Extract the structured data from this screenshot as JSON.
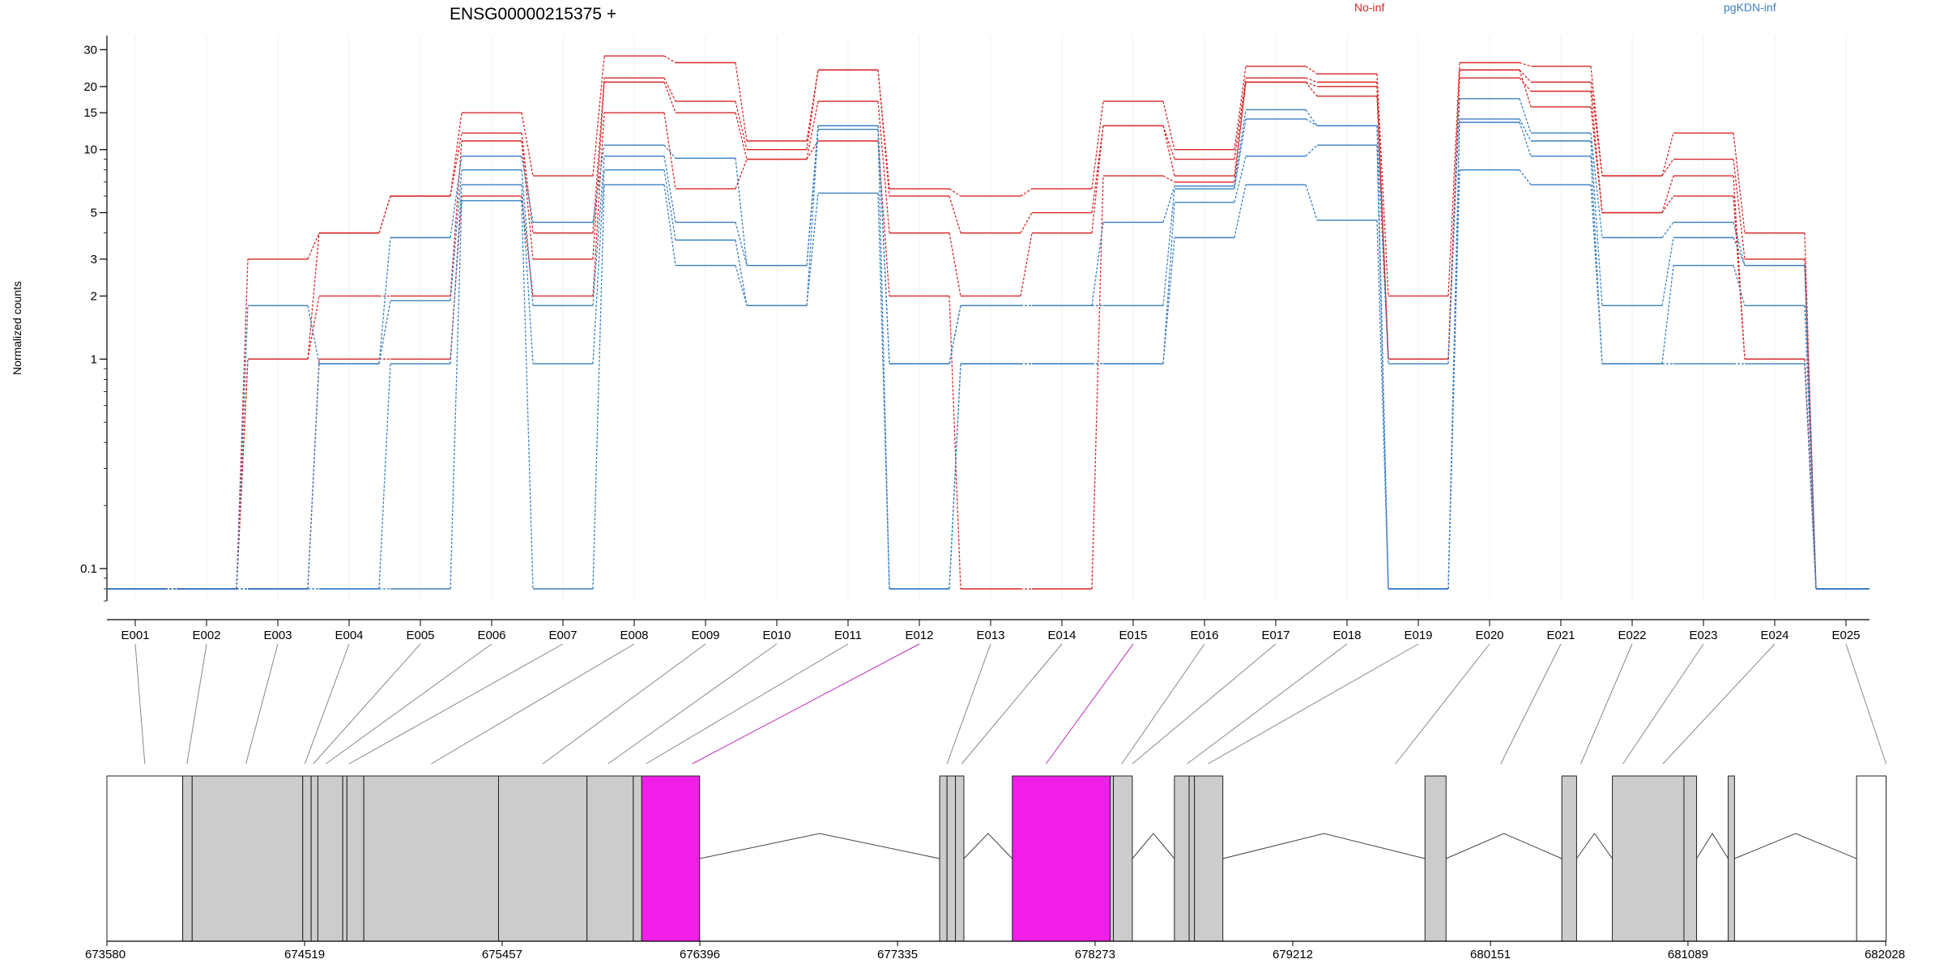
{
  "chart_data": {
    "type": "line",
    "title": "ENSG00000215375 +",
    "xlabel": "",
    "ylabel": "Normalized counts",
    "y_scale": "log",
    "yticks": [
      0.1,
      1,
      2,
      3,
      5,
      10,
      15,
      20,
      30
    ],
    "ytick_labels": [
      "0.1",
      "1",
      "2",
      "3",
      "5",
      "10",
      "15",
      "20",
      "30"
    ],
    "ylim": [
      0.07,
      35
    ],
    "grid": "vertical",
    "legend_position": "top-right",
    "legend_colors": [
      "#d62728",
      "#3a7fc1"
    ],
    "categories": [
      "E001",
      "E002",
      "E003",
      "E004",
      "E005",
      "E006",
      "E007",
      "E008",
      "E009",
      "E010",
      "E011",
      "E012",
      "E013",
      "E014",
      "E015",
      "E016",
      "E017",
      "E018",
      "E019",
      "E020",
      "E021",
      "E022",
      "E023",
      "E024",
      "E025"
    ],
    "series": [
      {
        "name": "No-inf",
        "color": "#d62728",
        "values": [
          0.08,
          0.08,
          3,
          4,
          6,
          15,
          7.5,
          28,
          26,
          11,
          24,
          6.5,
          6,
          6.5,
          17,
          10,
          25,
          23,
          2,
          26,
          25,
          7.5,
          12,
          4,
          0.08
        ]
      },
      {
        "name": "No-inf",
        "color": "#d62728",
        "values": [
          0.08,
          0.08,
          1,
          4,
          6,
          12,
          4,
          22,
          17,
          10,
          24,
          6,
          4,
          5,
          13,
          9,
          22,
          21,
          1,
          24,
          21,
          7.5,
          9,
          3,
          0.08
        ]
      },
      {
        "name": "No-inf",
        "color": "#d62728",
        "values": [
          0.08,
          0.08,
          1,
          2,
          2,
          11,
          3,
          21,
          15,
          9,
          17,
          4,
          2,
          4,
          13,
          7.5,
          21,
          20,
          1,
          22,
          19,
          5,
          7.5,
          1,
          0.08
        ]
      },
      {
        "name": "No-inf",
        "color": "#d62728",
        "values": [
          0.08,
          0.08,
          0.08,
          1,
          1,
          6,
          2,
          15,
          6.5,
          9,
          11,
          2,
          0.08,
          0.08,
          7.5,
          7,
          21,
          18,
          1,
          24,
          16,
          5,
          6,
          1,
          0.08
        ]
      },
      {
        "name": "pgKDN-inf",
        "color": "#3a7fc1",
        "values": [
          0.08,
          0.08,
          1.8,
          0.95,
          3.8,
          9.3,
          4.5,
          10.5,
          9.1,
          2.8,
          13,
          0.95,
          1.8,
          1.8,
          4.5,
          6.7,
          15.5,
          13,
          0.95,
          17.5,
          12,
          3.8,
          4.5,
          2.8,
          0.08
        ]
      },
      {
        "name": "pgKDN-inf",
        "color": "#3a7fc1",
        "values": [
          0.08,
          0.08,
          0.08,
          0.95,
          1.9,
          8,
          1.8,
          9.3,
          4.5,
          2.8,
          13,
          0.95,
          1.8,
          1.8,
          1.8,
          6.5,
          14,
          13,
          0.08,
          14,
          11,
          1.8,
          3.8,
          2.8,
          0.08
        ]
      },
      {
        "name": "pgKDN-inf",
        "color": "#3a7fc1",
        "values": [
          0.08,
          0.08,
          0.08,
          0.08,
          0.95,
          6.8,
          0.95,
          8,
          3.7,
          1.8,
          12.5,
          0.08,
          0.95,
          0.95,
          0.95,
          5.6,
          9.3,
          10.5,
          0.08,
          13.5,
          9.3,
          0.95,
          2.8,
          1.8,
          0.08
        ]
      },
      {
        "name": "pgKDN-inf",
        "color": "#3a7fc1",
        "values": [
          0.08,
          0.08,
          0.08,
          0.08,
          0.08,
          5.7,
          0.08,
          6.8,
          2.8,
          1.8,
          6.2,
          0.08,
          0.95,
          0.95,
          0.95,
          3.8,
          6.8,
          4.6,
          0.08,
          8,
          6.8,
          0.95,
          0.95,
          0.95,
          0.08
        ]
      }
    ],
    "gene_model": {
      "axis_ticks": [
        673580,
        674519,
        675457,
        676396,
        677335,
        678273,
        679212,
        680151,
        681089,
        682028
      ],
      "axis_range": [
        673580,
        682028
      ],
      "connector_targets": [
        673760,
        673960,
        674240,
        674520,
        674560,
        674620,
        674730,
        675120,
        675650,
        675960,
        676140,
        676360,
        677570,
        677640,
        678040,
        678400,
        678450,
        678710,
        678810,
        679700,
        680200,
        680580,
        680780,
        680970,
        682030
      ],
      "highlight_exons": [
        "E012",
        "E015"
      ],
      "highlight_color": "#f01ee8",
      "exon_color": "#cccccc",
      "blocks": [
        {
          "start": 673580,
          "end": 673940,
          "type": "utr"
        },
        {
          "start": 673940,
          "end": 673985,
          "type": "exon"
        },
        {
          "start": 673985,
          "end": 674510,
          "type": "exon"
        },
        {
          "start": 674510,
          "end": 674550,
          "type": "exon"
        },
        {
          "start": 674550,
          "end": 674582,
          "type": "exon"
        },
        {
          "start": 674582,
          "end": 674700,
          "type": "exon"
        },
        {
          "start": 674700,
          "end": 674720,
          "type": "exon"
        },
        {
          "start": 674720,
          "end": 674800,
          "type": "exon"
        },
        {
          "start": 674800,
          "end": 675440,
          "type": "exon"
        },
        {
          "start": 675440,
          "end": 675860,
          "type": "exon"
        },
        {
          "start": 675860,
          "end": 676080,
          "type": "exon"
        },
        {
          "start": 676080,
          "end": 676120,
          "type": "exon"
        },
        {
          "start": 676120,
          "end": 676395,
          "type": "highlight"
        },
        {
          "start": 677535,
          "end": 677570,
          "type": "exon"
        },
        {
          "start": 677570,
          "end": 677610,
          "type": "exon"
        },
        {
          "start": 677610,
          "end": 677650,
          "type": "exon"
        },
        {
          "start": 677880,
          "end": 678345,
          "type": "highlight"
        },
        {
          "start": 678345,
          "end": 678360,
          "type": "exon"
        },
        {
          "start": 678360,
          "end": 678450,
          "type": "exon"
        },
        {
          "start": 678650,
          "end": 678720,
          "type": "exon"
        },
        {
          "start": 678720,
          "end": 678745,
          "type": "exon"
        },
        {
          "start": 678745,
          "end": 678880,
          "type": "exon"
        },
        {
          "start": 679840,
          "end": 679940,
          "type": "exon"
        },
        {
          "start": 680490,
          "end": 680560,
          "type": "exon"
        },
        {
          "start": 680730,
          "end": 681070,
          "type": "exon"
        },
        {
          "start": 681070,
          "end": 681130,
          "type": "exon"
        },
        {
          "start": 681280,
          "end": 681310,
          "type": "exon"
        },
        {
          "start": 681890,
          "end": 682030,
          "type": "utr"
        }
      ],
      "introns": [
        [
          676395,
          677535
        ],
        [
          677650,
          677880
        ],
        [
          678450,
          678650
        ],
        [
          678880,
          679840
        ],
        [
          679940,
          680490
        ],
        [
          680560,
          680730
        ],
        [
          681130,
          681280
        ],
        [
          681310,
          681890
        ]
      ]
    }
  }
}
